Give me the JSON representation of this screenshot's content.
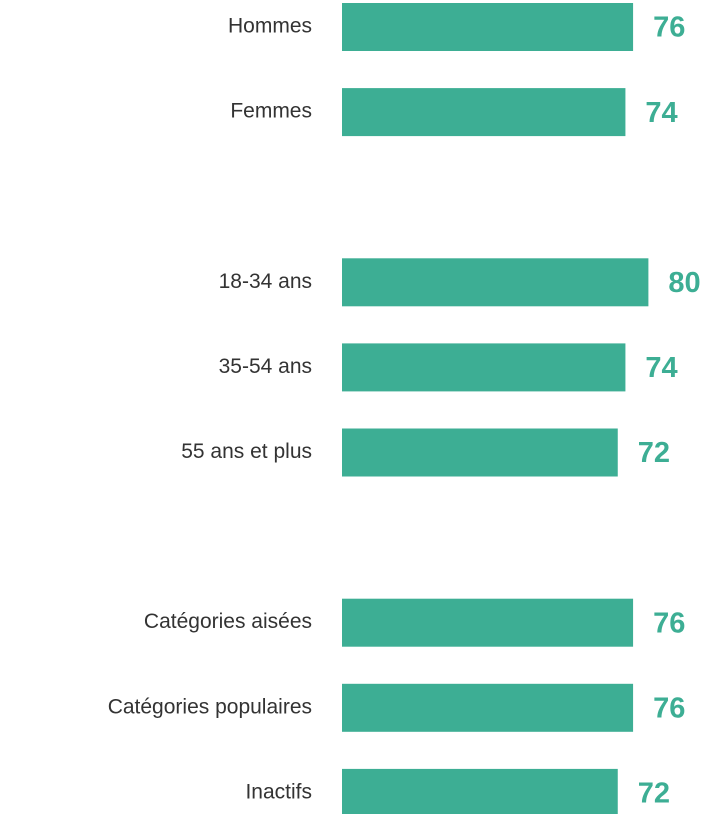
{
  "chart_data": {
    "type": "bar",
    "orientation": "horizontal",
    "color": "#3dae94",
    "categories": [
      "Hommes",
      "Femmes",
      null,
      "18-34 ans",
      "35-54 ans",
      "55 ans et plus",
      null,
      "Catégories aisées",
      "Catégories populaires",
      "Inactifs"
    ],
    "values": [
      76,
      74,
      null,
      80,
      74,
      72,
      null,
      76,
      76,
      72
    ]
  }
}
